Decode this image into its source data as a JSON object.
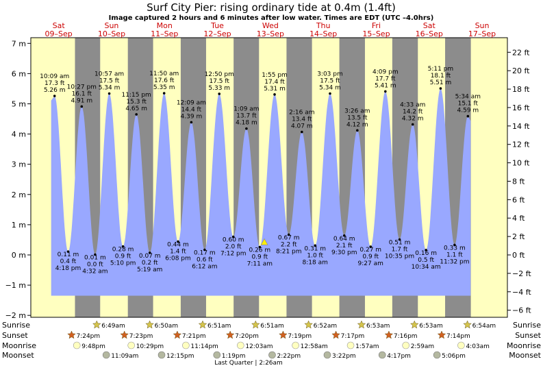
{
  "chart_data": {
    "type": "area",
    "title": "Surf City Pier: rising  ordinary tide at 0.4m (1.4ft)",
    "subtitle": "Image captured 2 hours and 6 minutes after low water. Times are EDT (UTC –4.0hrs)",
    "ylim_m": [
      -2,
      7
    ],
    "ylim_ft": [
      -6,
      22
    ],
    "y_ticks_m": [
      -2,
      -1,
      0,
      1,
      2,
      3,
      4,
      5,
      6,
      7
    ],
    "y_ticks_m_labels": [
      "−2 m",
      "−1 m",
      "0 m",
      "1 m",
      "2 m",
      "3 m",
      "4 m",
      "5 m",
      "6 m",
      "7 m"
    ],
    "y_ticks_ft": [
      -6,
      -4,
      -2,
      0,
      2,
      4,
      6,
      8,
      10,
      12,
      14,
      16,
      18,
      20,
      22
    ],
    "y_ticks_ft_labels": [
      "−6 ft",
      "−4 ft",
      "−2 ft",
      "0 ft",
      "2 ft",
      "4 ft",
      "6 ft",
      "8 ft",
      "10 ft",
      "12 ft",
      "14 ft",
      "16 ft",
      "18 ft",
      "20 ft",
      "22 ft"
    ],
    "days": [
      {
        "name": "Sat",
        "date": "09–Sep"
      },
      {
        "name": "Sun",
        "date": "10–Sep"
      },
      {
        "name": "Mon",
        "date": "11–Sep"
      },
      {
        "name": "Tue",
        "date": "12–Sep"
      },
      {
        "name": "Wed",
        "date": "13–Sep"
      },
      {
        "name": "Thu",
        "date": "14–Sep"
      },
      {
        "name": "Fri",
        "date": "15–Sep"
      },
      {
        "name": "Sat",
        "date": "16–Sep"
      },
      {
        "name": "Sun",
        "date": "17–Sep"
      }
    ],
    "tides": [
      {
        "kind": "high",
        "day": 0,
        "time": "10:09 am",
        "ft": "17.3 ft",
        "m_label": "5.26 m",
        "m": 5.26,
        "hour": 10.15
      },
      {
        "kind": "low",
        "day": 0,
        "time": "4:18 pm",
        "ft": "0.4 ft",
        "m_label": "0.11 m",
        "m": 0.11,
        "hour": 16.3
      },
      {
        "kind": "high",
        "day": 0,
        "time": "10:27 pm",
        "ft": "16.1 ft",
        "m_label": "4.91 m",
        "m": 4.91,
        "hour": 22.45
      },
      {
        "kind": "low",
        "day": 1,
        "time": "4:32 am",
        "ft": "0.0 ft",
        "m_label": "0.01 m",
        "m": 0.01,
        "hour": 4.53
      },
      {
        "kind": "high",
        "day": 1,
        "time": "10:57 am",
        "ft": "17.5 ft",
        "m_label": "5.34 m",
        "m": 5.34,
        "hour": 10.95
      },
      {
        "kind": "low",
        "day": 1,
        "time": "5:10 pm",
        "ft": "0.9 ft",
        "m_label": "0.28 m",
        "m": 0.28,
        "hour": 17.17
      },
      {
        "kind": "high",
        "day": 1,
        "time": "11:15 pm",
        "ft": "15.3 ft",
        "m_label": "4.65 m",
        "m": 4.65,
        "hour": 23.25
      },
      {
        "kind": "low",
        "day": 2,
        "time": "5:19 am",
        "ft": "0.2 ft",
        "m_label": "0.07 m",
        "m": 0.07,
        "hour": 5.32
      },
      {
        "kind": "high",
        "day": 2,
        "time": "11:50 am",
        "ft": "17.6 ft",
        "m_label": "5.35 m",
        "m": 5.35,
        "hour": 11.83
      },
      {
        "kind": "low",
        "day": 2,
        "time": "6:08 pm",
        "ft": "1.4 ft",
        "m_label": "0.44 m",
        "m": 0.44,
        "hour": 18.13
      },
      {
        "kind": "high",
        "day": 3,
        "time": "12:09 am",
        "ft": "14.4 ft",
        "m_label": "4.39 m",
        "m": 4.39,
        "hour": 0.15
      },
      {
        "kind": "low",
        "day": 3,
        "time": "6:12 am",
        "ft": "0.6 ft",
        "m_label": "0.17 m",
        "m": 0.17,
        "hour": 6.2
      },
      {
        "kind": "high",
        "day": 3,
        "time": "12:50 pm",
        "ft": "17.5 ft",
        "m_label": "5.33 m",
        "m": 5.33,
        "hour": 12.83
      },
      {
        "kind": "low",
        "day": 3,
        "time": "7:12 pm",
        "ft": "2.0 ft",
        "m_label": "0.60 m",
        "m": 0.6,
        "hour": 19.2
      },
      {
        "kind": "high",
        "day": 4,
        "time": "1:09 am",
        "ft": "13.7 ft",
        "m_label": "4.18 m",
        "m": 4.18,
        "hour": 1.15
      },
      {
        "kind": "low",
        "day": 4,
        "time": "7:11 am",
        "ft": "0.9 ft",
        "m_label": "0.26 m",
        "m": 0.26,
        "hour": 7.18
      },
      {
        "kind": "high",
        "day": 4,
        "time": "1:55 pm",
        "ft": "17.4 ft",
        "m_label": "5.31 m",
        "m": 5.31,
        "hour": 13.92
      },
      {
        "kind": "low",
        "day": 4,
        "time": "8:21 pm",
        "ft": "2.2 ft",
        "m_label": "0.67 m",
        "m": 0.67,
        "hour": 20.35
      },
      {
        "kind": "high",
        "day": 5,
        "time": "2:16 am",
        "ft": "13.4 ft",
        "m_label": "4.07 m",
        "m": 4.07,
        "hour": 2.27
      },
      {
        "kind": "low",
        "day": 5,
        "time": "8:18 am",
        "ft": "1.0 ft",
        "m_label": "0.31 m",
        "m": 0.31,
        "hour": 8.3
      },
      {
        "kind": "high",
        "day": 5,
        "time": "3:03 pm",
        "ft": "17.5 ft",
        "m_label": "5.34 m",
        "m": 5.34,
        "hour": 15.05
      },
      {
        "kind": "low",
        "day": 5,
        "time": "9:30 pm",
        "ft": "2.1 ft",
        "m_label": "0.64 m",
        "m": 0.64,
        "hour": 21.5
      },
      {
        "kind": "high",
        "day": 6,
        "time": "3:26 am",
        "ft": "13.5 ft",
        "m_label": "4.12 m",
        "m": 4.12,
        "hour": 3.43
      },
      {
        "kind": "low",
        "day": 6,
        "time": "9:27 am",
        "ft": "0.9 ft",
        "m_label": "0.27 m",
        "m": 0.27,
        "hour": 9.45
      },
      {
        "kind": "high",
        "day": 6,
        "time": "4:09 pm",
        "ft": "17.7 ft",
        "m_label": "5.41 m",
        "m": 5.41,
        "hour": 16.15
      },
      {
        "kind": "low",
        "day": 6,
        "time": "10:35 pm",
        "ft": "1.7 ft",
        "m_label": "0.51 m",
        "m": 0.51,
        "hour": 22.58
      },
      {
        "kind": "high",
        "day": 7,
        "time": "4:33 am",
        "ft": "14.2 ft",
        "m_label": "4.32 m",
        "m": 4.32,
        "hour": 4.55
      },
      {
        "kind": "low",
        "day": 7,
        "time": "10:34 am",
        "ft": "0.5 ft",
        "m_label": "0.16 m",
        "m": 0.16,
        "hour": 10.57
      },
      {
        "kind": "high",
        "day": 7,
        "time": "5:11 pm",
        "ft": "18.1 ft",
        "m_label": "5.51 m",
        "m": 5.51,
        "hour": 17.18
      },
      {
        "kind": "low",
        "day": 7,
        "time": "11:32 pm",
        "ft": "1.1 ft",
        "m_label": "0.33 m",
        "m": 0.33,
        "hour": 23.53
      },
      {
        "kind": "high",
        "day": 8,
        "time": "5:34 am",
        "ft": "15.1 ft",
        "m_label": "4.59 m",
        "m": 4.59,
        "hour": 5.57
      }
    ],
    "current": {
      "day": 4,
      "hour": 9.28,
      "m": 0.4
    },
    "rows": {
      "sunrise_label": "Sunrise",
      "sunset_label": "Sunset",
      "moonrise_label": "Moonrise",
      "moonset_label": "Moonset",
      "sunrise": [
        {
          "day": 1,
          "hour": 6.82,
          "time": "6:49am"
        },
        {
          "day": 2,
          "hour": 6.83,
          "time": "6:50am"
        },
        {
          "day": 3,
          "hour": 6.85,
          "time": "6:51am"
        },
        {
          "day": 4,
          "hour": 6.85,
          "time": "6:51am"
        },
        {
          "day": 5,
          "hour": 6.87,
          "time": "6:52am"
        },
        {
          "day": 6,
          "hour": 6.88,
          "time": "6:53am"
        },
        {
          "day": 7,
          "hour": 6.88,
          "time": "6:53am"
        },
        {
          "day": 8,
          "hour": 6.9,
          "time": "6:54am"
        }
      ],
      "sunset": [
        {
          "day": 0,
          "hour": 19.4,
          "time": "7:24pm"
        },
        {
          "day": 1,
          "hour": 19.38,
          "time": "7:23pm"
        },
        {
          "day": 2,
          "hour": 19.35,
          "time": "7:21pm"
        },
        {
          "day": 3,
          "hour": 19.33,
          "time": "7:20pm"
        },
        {
          "day": 4,
          "hour": 19.32,
          "time": "7:19pm"
        },
        {
          "day": 5,
          "hour": 19.28,
          "time": "7:17pm"
        },
        {
          "day": 6,
          "hour": 19.27,
          "time": "7:16pm"
        },
        {
          "day": 7,
          "hour": 19.23,
          "time": "7:14pm"
        }
      ],
      "moonrise": [
        {
          "day": 0,
          "hour": 21.8,
          "time": "9:48pm"
        },
        {
          "day": 1,
          "hour": 22.48,
          "time": "10:29pm"
        },
        {
          "day": 2,
          "hour": 23.23,
          "time": "11:14pm"
        },
        {
          "day": 4,
          "hour": 0.05,
          "time": "12:03am"
        },
        {
          "day": 5,
          "hour": 0.97,
          "time": "12:58am"
        },
        {
          "day": 6,
          "hour": 1.95,
          "time": "1:57am"
        },
        {
          "day": 7,
          "hour": 2.98,
          "time": "2:59am"
        },
        {
          "day": 8,
          "hour": 4.05,
          "time": "4:03am"
        }
      ],
      "moonset": [
        {
          "day": 1,
          "hour": 11.15,
          "time": "11:09am"
        },
        {
          "day": 2,
          "hour": 12.25,
          "time": "12:15pm"
        },
        {
          "day": 3,
          "hour": 13.32,
          "time": "1:19pm"
        },
        {
          "day": 4,
          "hour": 14.37,
          "time": "2:22pm"
        },
        {
          "day": 5,
          "hour": 15.37,
          "time": "3:22pm"
        },
        {
          "day": 6,
          "hour": 16.28,
          "time": "4:17pm"
        },
        {
          "day": 7,
          "hour": 17.1,
          "time": "5:06pm"
        }
      ]
    },
    "moon_phase_note": "Last Quarter | 2:26am",
    "colors": {
      "day": "#ffffc0",
      "night": "#8c8c8c",
      "water": "#99a8ff",
      "date_label": "#cc0000",
      "sun": "#d4c44c",
      "sunset": "#d06020",
      "moonrise": "#ffffc0",
      "moonset": "#b4b8a0",
      "current_marker": "#ffee00"
    }
  }
}
